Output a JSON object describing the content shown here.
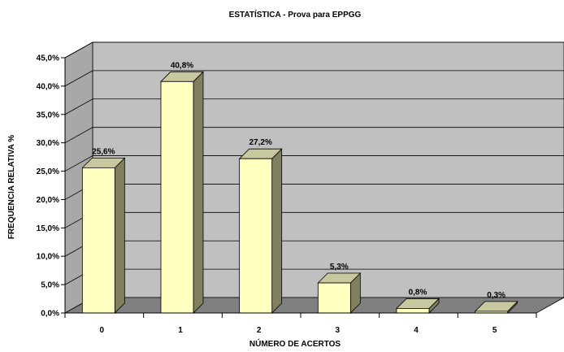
{
  "chart_data": {
    "type": "bar",
    "title": "ESTATÍSTICA - Prova para EPPGG",
    "xlabel": "NÚMERO DE ACERTOS",
    "ylabel": "FREQUENCIA RELATIVA %",
    "categories": [
      "0",
      "1",
      "2",
      "3",
      "4",
      "5"
    ],
    "values": [
      25.6,
      40.8,
      27.2,
      5.3,
      0.8,
      0.3
    ],
    "value_labels": [
      "25,6%",
      "40,8%",
      "27,2%",
      "5,3%",
      "0,8%",
      "0,3%"
    ],
    "ylim": [
      0,
      45
    ],
    "yticks": [
      0,
      5,
      10,
      15,
      20,
      25,
      30,
      35,
      40,
      45
    ],
    "ytick_labels": [
      "0,0%",
      "5,0%",
      "10,0%",
      "15,0%",
      "20,0%",
      "25,0%",
      "30,0%",
      "35,0%",
      "40,0%",
      "45,0%"
    ],
    "grid": true,
    "style": "3d-column",
    "colors": {
      "bar_front": "#FFFFC0",
      "bar_side": "#808060",
      "bar_top": "#C8C8A0",
      "back_wall": "#C0C0C0",
      "side_wall": "#A8A8A8",
      "floor": "#808080"
    }
  }
}
